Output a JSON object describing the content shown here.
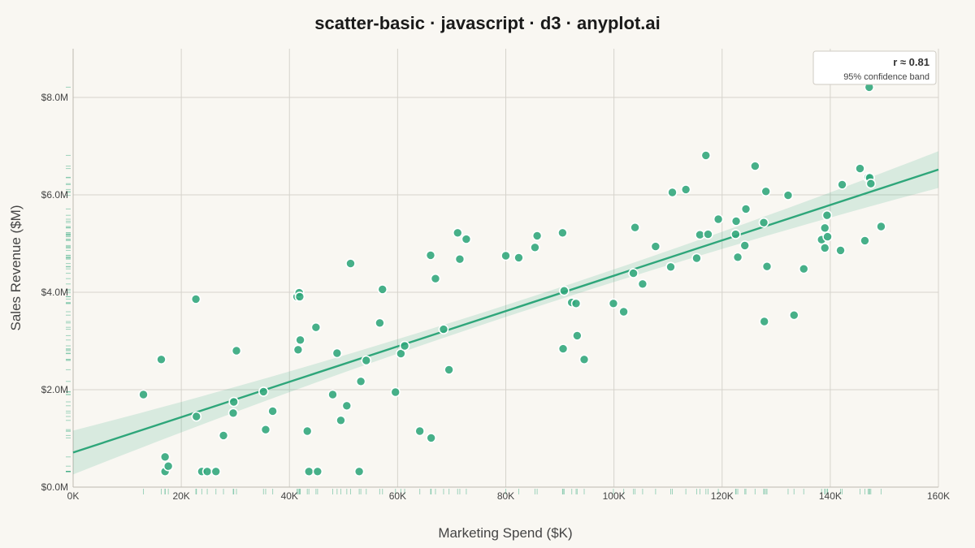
{
  "chart_data": {
    "type": "scatter",
    "title": "scatter-basic · javascript · d3 · anyplot.ai",
    "xlabel": "Marketing Spend ($K)",
    "ylabel": "Sales Revenue ($M)",
    "xlim": [
      0,
      160
    ],
    "ylim": [
      0,
      9
    ],
    "x_ticks": [
      0,
      20,
      40,
      60,
      80,
      100,
      120,
      140,
      160
    ],
    "x_tick_labels": [
      "0K",
      "20K",
      "40K",
      "60K",
      "80K",
      "100K",
      "120K",
      "140K",
      "160K"
    ],
    "y_ticks": [
      0,
      2,
      4,
      6,
      8
    ],
    "y_tick_labels": [
      "$0.0M",
      "$2.0M",
      "$4.0M",
      "$6.0M",
      "$8.0M"
    ],
    "grid": true,
    "color": "#2ea67a",
    "regression": {
      "intercept": 0.71,
      "slope": 0.0363,
      "band_half_width_at_ends": 0.45,
      "band_half_width_at_center": 0.12,
      "center_x": 85
    },
    "legend": {
      "position": "top-right",
      "r_text": "r ≈ 0.81",
      "band_text": "95% confidence band"
    },
    "points": [
      [
        13.0,
        1.9
      ],
      [
        16.3,
        2.62
      ],
      [
        17.0,
        0.62
      ],
      [
        17.0,
        0.32
      ],
      [
        17.6,
        0.43
      ],
      [
        22.7,
        3.86
      ],
      [
        22.8,
        1.45
      ],
      [
        23.8,
        0.32
      ],
      [
        24.8,
        0.32
      ],
      [
        26.4,
        0.32
      ],
      [
        27.8,
        1.06
      ],
      [
        29.6,
        1.52
      ],
      [
        29.7,
        1.75
      ],
      [
        30.2,
        2.8
      ],
      [
        35.2,
        1.96
      ],
      [
        35.6,
        1.18
      ],
      [
        36.9,
        1.56
      ],
      [
        41.4,
        3.91
      ],
      [
        41.8,
        3.99
      ],
      [
        41.9,
        3.91
      ],
      [
        41.6,
        2.82
      ],
      [
        42.0,
        3.02
      ],
      [
        43.3,
        1.15
      ],
      [
        43.6,
        0.32
      ],
      [
        44.9,
        3.28
      ],
      [
        45.2,
        0.32
      ],
      [
        48.0,
        1.9
      ],
      [
        48.8,
        2.75
      ],
      [
        49.5,
        1.37
      ],
      [
        50.6,
        1.67
      ],
      [
        51.3,
        4.59
      ],
      [
        52.9,
        0.32
      ],
      [
        53.2,
        2.17
      ],
      [
        54.2,
        2.6
      ],
      [
        56.7,
        3.37
      ],
      [
        57.2,
        4.06
      ],
      [
        59.6,
        1.95
      ],
      [
        60.6,
        2.74
      ],
      [
        61.3,
        2.9
      ],
      [
        64.1,
        1.15
      ],
      [
        66.2,
        1.01
      ],
      [
        66.1,
        4.76
      ],
      [
        67.0,
        4.28
      ],
      [
        68.5,
        3.24
      ],
      [
        69.5,
        2.41
      ],
      [
        71.1,
        5.22
      ],
      [
        71.5,
        4.68
      ],
      [
        72.7,
        5.09
      ],
      [
        80.0,
        4.75
      ],
      [
        82.4,
        4.71
      ],
      [
        85.4,
        4.92
      ],
      [
        85.8,
        5.16
      ],
      [
        90.5,
        5.22
      ],
      [
        90.6,
        2.84
      ],
      [
        90.8,
        4.03
      ],
      [
        92.2,
        3.79
      ],
      [
        93.0,
        3.77
      ],
      [
        93.2,
        3.11
      ],
      [
        94.5,
        2.62
      ],
      [
        99.9,
        3.77
      ],
      [
        101.8,
        3.6
      ],
      [
        103.6,
        4.39
      ],
      [
        103.9,
        5.33
      ],
      [
        105.3,
        4.17
      ],
      [
        107.7,
        4.94
      ],
      [
        110.5,
        4.52
      ],
      [
        110.8,
        6.05
      ],
      [
        113.3,
        6.11
      ],
      [
        115.3,
        4.7
      ],
      [
        115.9,
        5.18
      ],
      [
        117.0,
        6.81
      ],
      [
        117.4,
        5.19
      ],
      [
        119.3,
        5.5
      ],
      [
        122.5,
        5.19
      ],
      [
        122.6,
        5.46
      ],
      [
        122.9,
        4.72
      ],
      [
        124.2,
        4.96
      ],
      [
        124.4,
        5.71
      ],
      [
        126.1,
        6.59
      ],
      [
        127.7,
        5.43
      ],
      [
        127.8,
        3.4
      ],
      [
        128.1,
        6.07
      ],
      [
        128.3,
        4.53
      ],
      [
        132.2,
        5.99
      ],
      [
        133.3,
        3.53
      ],
      [
        135.1,
        4.48
      ],
      [
        138.4,
        5.08
      ],
      [
        139.0,
        5.32
      ],
      [
        139.0,
        4.91
      ],
      [
        139.4,
        5.58
      ],
      [
        139.5,
        5.14
      ],
      [
        141.9,
        4.86
      ],
      [
        142.2,
        6.21
      ],
      [
        145.5,
        6.54
      ],
      [
        146.4,
        5.06
      ],
      [
        147.0,
        6.36
      ],
      [
        147.2,
        8.21
      ],
      [
        147.3,
        6.35
      ],
      [
        147.5,
        6.23
      ],
      [
        149.4,
        5.35
      ]
    ]
  }
}
